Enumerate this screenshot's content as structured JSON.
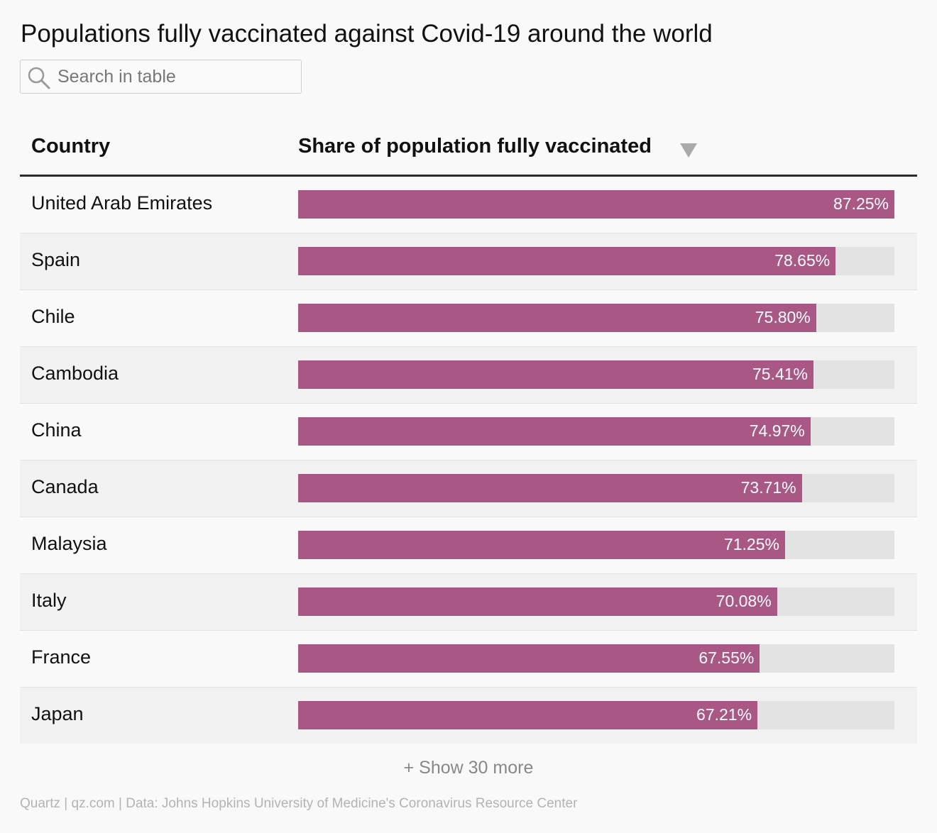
{
  "title": "Populations fully vaccinated against Covid-19 around the world",
  "search": {
    "placeholder": "Search in table",
    "value": ""
  },
  "table": {
    "columns": [
      "Country",
      "Share of population fully vaccinated"
    ],
    "sort_icon": "triangle-down-icon"
  },
  "chart_data": {
    "type": "bar",
    "orientation": "horizontal",
    "title": "Populations fully vaccinated against Covid-19 around the world",
    "categories": [
      "United Arab Emirates",
      "Spain",
      "Chile",
      "Cambodia",
      "China",
      "Canada",
      "Malaysia",
      "Italy",
      "France",
      "Japan"
    ],
    "values": [
      87.25,
      78.65,
      75.8,
      75.41,
      74.97,
      73.71,
      71.25,
      70.08,
      67.55,
      67.21
    ],
    "labels": [
      "87.25%",
      "78.65%",
      "75.80%",
      "75.41%",
      "74.97%",
      "73.71%",
      "71.25%",
      "70.08%",
      "67.55%",
      "67.21%"
    ],
    "xlim": [
      0,
      87.25
    ],
    "bar_color": "#a95785",
    "track_color": "#e3e3e3"
  },
  "show_more": "+ Show 30 more",
  "footer": "Quartz | qz.com | Data: Johns Hopkins University of Medicine's Coronavirus Resource Center"
}
